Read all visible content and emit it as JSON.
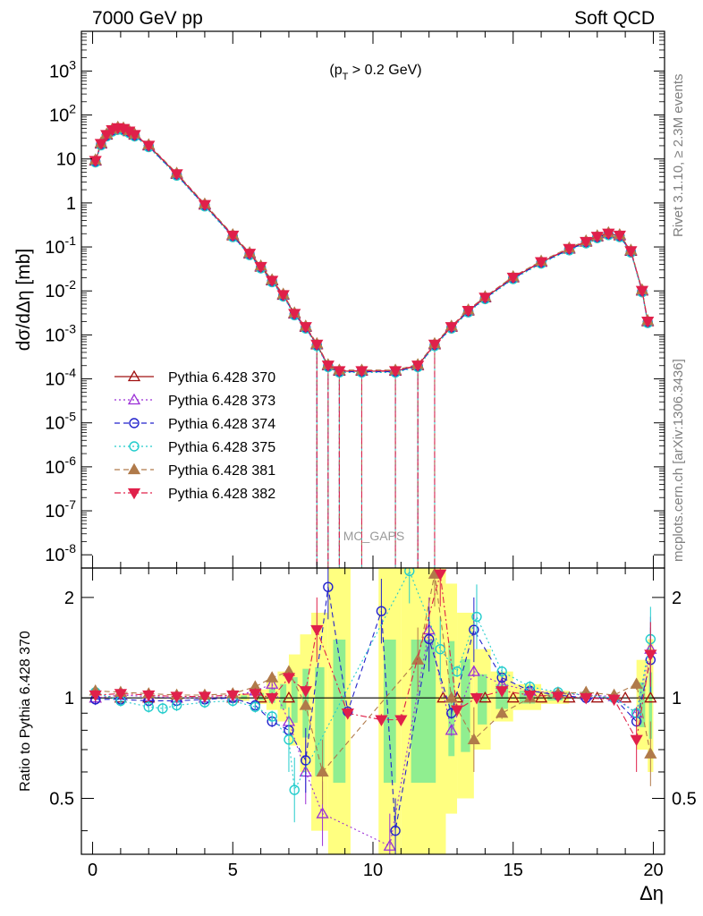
{
  "header": {
    "left": "7000 GeV pp",
    "right": "Soft QCD"
  },
  "side": {
    "rivet": "Rivet 3.1.10, ≥ 2.3M events",
    "mcplots": "mcplots.cern.ch [arXiv:1306.3436]"
  },
  "watermark": "MC_GAPS",
  "colors": {
    "s370": "#a01010",
    "s373": "#9b2fd6",
    "s374": "#2222cc",
    "s375": "#22cccc",
    "s381": "#b07a4a",
    "s382": "#e0204a",
    "band_yellow": "#ffff80",
    "band_green": "#90ee90"
  },
  "chart_data": [
    {
      "type": "scatter",
      "title": "(p_T > 0.2 GeV)",
      "title_parts": {
        "p": "(p",
        "sub": "T",
        "rest": " > 0.2 GeV)"
      },
      "ylabel": "dσ/dΔη [mb]",
      "yscale": "log",
      "xlim": [
        -0.4,
        20.4
      ],
      "ylim": [
        5e-09,
        8000
      ],
      "yticks": [
        "10^-8",
        "10^-7",
        "10^-6",
        "10^-5",
        "10^-4",
        "10^-3",
        "10^-2",
        "10^-1",
        "1",
        "10",
        "10^2",
        "10^3"
      ],
      "legend_position": "left-middle",
      "reference": {
        "name": "Pythia 6.428 370",
        "x": [
          0.1,
          0.3,
          0.5,
          0.7,
          0.9,
          1.1,
          1.3,
          1.5,
          2.0,
          3.0,
          4.0,
          5.0,
          5.6,
          6.0,
          6.4,
          6.8,
          7.2,
          7.6,
          8.0,
          8.4,
          8.8,
          9.6,
          10.8,
          11.6,
          12.2,
          12.8,
          13.4,
          14.0,
          15.0,
          16.0,
          17.0,
          17.6,
          18.0,
          18.4,
          18.8,
          19.2,
          19.6,
          19.8
        ],
        "y": [
          9,
          22,
          35,
          45,
          50,
          48,
          42,
          35,
          20,
          4.5,
          0.9,
          0.18,
          0.07,
          0.035,
          0.017,
          0.008,
          0.003,
          0.0015,
          0.0006,
          0.0002,
          0.00015,
          0.00015,
          0.00015,
          0.0002,
          0.0006,
          0.0015,
          0.0035,
          0.007,
          0.02,
          0.045,
          0.09,
          0.13,
          0.17,
          0.2,
          0.18,
          0.08,
          0.01,
          0.002
        ]
      },
      "series": [
        {
          "name": "Pythia 6.428 370",
          "marker": "triangle-up-open",
          "line": "solid",
          "color_key": "s370",
          "scale": 1.0
        },
        {
          "name": "Pythia 6.428 373",
          "marker": "triangle-up-open",
          "line": "dotted",
          "color_key": "s373",
          "scale": 1.03
        },
        {
          "name": "Pythia 6.428 374",
          "marker": "circle-open",
          "line": "dashed",
          "color_key": "s374",
          "scale": 0.97
        },
        {
          "name": "Pythia 6.428 375",
          "marker": "circle-open",
          "line": "dotted",
          "color_key": "s375",
          "scale": 0.93
        },
        {
          "name": "Pythia 6.428 381",
          "marker": "triangle-up-filled",
          "line": "dashed",
          "color_key": "s381",
          "scale": 1.06
        },
        {
          "name": "Pythia 6.428 382",
          "marker": "triangle-down-filled",
          "line": "dashdot",
          "color_key": "s382",
          "scale": 1.02
        }
      ]
    },
    {
      "type": "scatter",
      "xlabel": "Δη",
      "ylabel": "Ratio to Pythia 6.428 370",
      "yscale": "log",
      "xlim": [
        -0.4,
        20.4
      ],
      "ylim": [
        0.34,
        2.45
      ],
      "xticks": [
        0,
        5,
        10,
        15,
        20
      ],
      "yticks": [
        0.5,
        1,
        2
      ],
      "reference_line": 1,
      "bands": [
        {
          "x0": 5.2,
          "x1": 5.6,
          "lo": 0.98,
          "hi": 1.03
        },
        {
          "x0": 5.8,
          "x1": 6.2,
          "lo": 0.96,
          "hi": 1.06
        },
        {
          "x0": 6.2,
          "x1": 6.6,
          "lo": 0.92,
          "hi": 1.12
        },
        {
          "x0": 6.6,
          "x1": 7.0,
          "lo": 0.85,
          "hi": 1.2
        },
        {
          "x0": 7.0,
          "x1": 7.4,
          "lo": 0.72,
          "hi": 1.35
        },
        {
          "x0": 7.4,
          "x1": 7.8,
          "lo": 0.6,
          "hi": 1.55
        },
        {
          "x0": 7.8,
          "x1": 8.4,
          "lo": 0.4,
          "hi": 1.8
        },
        {
          "x0": 8.4,
          "x1": 9.2,
          "lo": 0.34,
          "hi": 2.45
        },
        {
          "x0": 10.2,
          "x1": 11.0,
          "lo": 0.34,
          "hi": 2.45
        },
        {
          "x0": 11.0,
          "x1": 12.6,
          "lo": 0.34,
          "hi": 2.45
        },
        {
          "x0": 12.6,
          "x1": 13.0,
          "lo": 0.45,
          "hi": 2.2
        },
        {
          "x0": 13.0,
          "x1": 13.6,
          "lo": 0.5,
          "hi": 1.8
        },
        {
          "x0": 13.6,
          "x1": 14.2,
          "lo": 0.7,
          "hi": 1.4
        },
        {
          "x0": 14.2,
          "x1": 15.0,
          "lo": 0.85,
          "hi": 1.2
        },
        {
          "x0": 15.0,
          "x1": 16.0,
          "lo": 0.92,
          "hi": 1.1
        },
        {
          "x0": 16.0,
          "x1": 17.0,
          "lo": 0.96,
          "hi": 1.05
        },
        {
          "x0": 19.4,
          "x1": 19.8,
          "lo": 0.7,
          "hi": 1.3
        },
        {
          "x0": 19.8,
          "x1": 20.0,
          "lo": 0.6,
          "hi": 1.5
        }
      ],
      "ratio_series": [
        {
          "name": "Pythia 6.428 373",
          "x": [
            0.1,
            1.0,
            2.0,
            3.0,
            4.0,
            5.0,
            5.8,
            6.4,
            7.0,
            7.6,
            8.2,
            10.6,
            12.0,
            12.8,
            13.6,
            14.6,
            15.6,
            16.6,
            17.6,
            18.6,
            19.4,
            19.9
          ],
          "y": [
            1.0,
            1.02,
            1.01,
            1.0,
            1.0,
            1.01,
            1.05,
            1.1,
            0.85,
            0.6,
            0.45,
            0.36,
            1.6,
            0.8,
            1.2,
            1.1,
            1.05,
            1.03,
            1.02,
            1.01,
            0.9,
            1.4
          ]
        },
        {
          "name": "Pythia 6.428 374",
          "x": [
            0.1,
            1.0,
            2.0,
            3.0,
            4.0,
            5.0,
            5.8,
            6.4,
            7.0,
            7.6,
            8.4,
            9.1,
            10.3,
            10.8,
            12.0,
            12.8,
            13.6,
            14.6,
            15.6,
            16.6,
            17.6,
            18.6,
            19.4,
            19.9
          ],
          "y": [
            0.99,
            0.99,
            0.98,
            0.98,
            0.99,
            1.0,
            0.95,
            0.85,
            0.8,
            0.65,
            2.15,
            0.91,
            1.82,
            0.4,
            1.5,
            0.9,
            1.6,
            1.15,
            1.05,
            1.02,
            1.0,
            1.0,
            0.85,
            1.3
          ]
        },
        {
          "name": "Pythia 6.428 375",
          "x": [
            0.1,
            1.0,
            2.0,
            2.5,
            3.0,
            4.0,
            5.0,
            5.8,
            6.4,
            7.0,
            7.2,
            11.3,
            12.4,
            13.0,
            13.7,
            14.6,
            15.6,
            16.6,
            17.6,
            18.6,
            19.4,
            19.9
          ],
          "y": [
            1.04,
            0.98,
            0.94,
            0.93,
            0.95,
            0.97,
            0.98,
            0.94,
            0.88,
            0.75,
            0.53,
            2.4,
            1.4,
            1.2,
            1.75,
            1.2,
            1.08,
            1.04,
            1.02,
            1.0,
            0.9,
            1.5
          ]
        },
        {
          "name": "Pythia 6.428 381",
          "x": [
            0.1,
            1.0,
            2.0,
            3.0,
            4.0,
            5.0,
            5.8,
            6.4,
            7.0,
            7.6,
            8.2,
            11.6,
            12.2,
            12.8,
            13.6,
            14.6,
            15.6,
            16.6,
            17.6,
            18.6,
            19.4,
            19.9
          ],
          "y": [
            1.05,
            1.04,
            1.03,
            1.02,
            1.02,
            1.03,
            1.08,
            1.15,
            1.2,
            0.95,
            0.6,
            1.3,
            2.35,
            1.0,
            0.75,
            0.9,
            1.0,
            1.03,
            1.04,
            1.02,
            1.1,
            0.68
          ]
        },
        {
          "name": "Pythia 6.428 382",
          "x": [
            0.1,
            1.0,
            2.0,
            3.0,
            4.0,
            5.0,
            5.8,
            6.4,
            7.0,
            7.6,
            8.0,
            9.1,
            10.3,
            11.0,
            12.4,
            13.0,
            13.7,
            14.6,
            15.6,
            16.6,
            17.6,
            18.6,
            19.4,
            19.9
          ],
          "y": [
            1.02,
            1.03,
            1.02,
            1.01,
            1.01,
            1.02,
            1.03,
            1.0,
            1.15,
            1.05,
            1.6,
            0.9,
            0.86,
            0.86,
            2.35,
            0.92,
            1.0,
            1.05,
            1.02,
            1.01,
            1.0,
            0.99,
            0.75,
            1.35
          ]
        }
      ]
    }
  ]
}
